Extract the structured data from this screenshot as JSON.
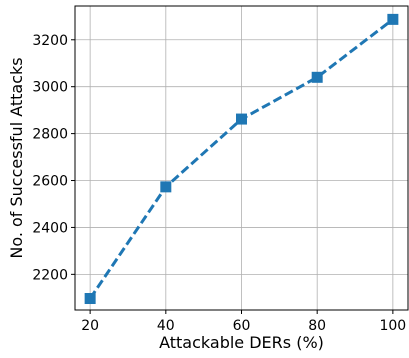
{
  "chart_data": {
    "type": "line",
    "x": [
      20,
      40,
      60,
      80,
      100
    ],
    "series": [
      {
        "values": [
          2097,
          2573,
          2862,
          3040,
          3287
        ],
        "color": "#1f77b4",
        "line_style": "dashed",
        "marker": "square"
      }
    ],
    "xlabel": "Attackable DERs (%)",
    "ylabel": "No. of Successful Attacks",
    "xlim": [
      16,
      104
    ],
    "ylim": [
      2048,
      3344
    ],
    "xticks": [
      20,
      40,
      60,
      80,
      100
    ],
    "yticks": [
      2200,
      2400,
      2600,
      2800,
      3000,
      3200
    ],
    "grid": true
  }
}
